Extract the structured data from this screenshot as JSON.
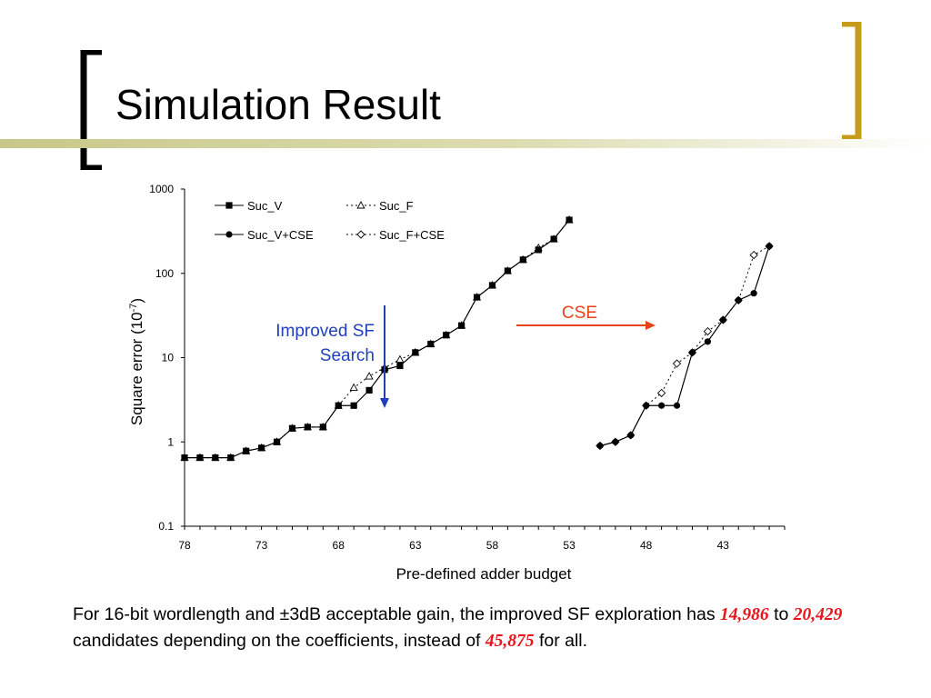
{
  "slide": {
    "title": "Simulation Result",
    "colors": {
      "bracket_left": "#000000",
      "bracket_right": "#c89a1b",
      "rule": "#c8c88a"
    }
  },
  "caption": {
    "part1": "For 16-bit wordlength and ±3dB acceptable gain, the improved SF exploration has",
    "num1": "14,986",
    "to": "to",
    "num2": "20,429",
    "part2": "candidates depending on the coefficients, instead of",
    "num3": "45,875",
    "part3": "for all."
  },
  "annotations": {
    "improved_line1": "Improved SF",
    "improved_line2": "Search",
    "cse": "CSE",
    "improved_color": "#1f3fbf",
    "cse_color": "#e8421b"
  },
  "chart_data": {
    "type": "line",
    "xlabel": "Pre-defined adder budget",
    "ylabel": "Square error (10",
    "ylabel_exp": "-7",
    "ylabel_close": ")",
    "yscale": "log",
    "ylim": [
      0.1,
      1000
    ],
    "yticks": [
      "0.1",
      "1",
      "10",
      "100",
      "1000"
    ],
    "xlim": [
      78,
      39
    ],
    "xticks": [
      "78",
      "73",
      "68",
      "63",
      "58",
      "53",
      "48",
      "43"
    ],
    "legend_placement": "top-left",
    "series": [
      {
        "name": "Suc_V",
        "marker": "square-filled",
        "dash": "solid",
        "x": [
          78,
          77,
          76,
          75,
          74,
          73,
          72,
          71,
          70,
          69,
          68,
          67,
          66,
          65,
          64,
          63,
          62,
          61,
          60,
          59,
          58,
          57,
          56,
          55,
          54,
          53
        ],
        "y": [
          0.65,
          0.65,
          0.65,
          0.65,
          0.78,
          0.85,
          1.0,
          1.45,
          1.5,
          1.5,
          2.7,
          2.7,
          4.1,
          7.2,
          8.0,
          11.5,
          14.5,
          18.5,
          24,
          52,
          72,
          107,
          145,
          190,
          255,
          430
        ]
      },
      {
        "name": "Suc_F",
        "marker": "triangle-open",
        "dash": "dotted",
        "x": [
          78,
          77,
          76,
          75,
          74,
          73,
          72,
          71,
          70,
          69,
          68,
          67,
          66,
          65,
          64,
          63,
          62,
          61,
          60,
          59,
          58,
          57,
          56,
          55,
          54,
          53
        ],
        "y": [
          0.65,
          0.65,
          0.65,
          0.65,
          0.78,
          0.85,
          1.0,
          1.45,
          1.5,
          1.5,
          2.7,
          4.4,
          6.0,
          7.6,
          9.5,
          11.5,
          14.5,
          18.5,
          24,
          52,
          72,
          107,
          145,
          200,
          255,
          430
        ]
      },
      {
        "name": "Suc_V+CSE",
        "marker": "circle-filled",
        "dash": "solid",
        "x": [
          51,
          50,
          49,
          48,
          47,
          46,
          45,
          44,
          43,
          42,
          41,
          40
        ],
        "y": [
          0.9,
          1.0,
          1.2,
          2.7,
          2.7,
          2.7,
          11.5,
          15.5,
          28,
          48,
          58,
          210
        ]
      },
      {
        "name": "Suc_F+CSE",
        "marker": "diamond-open",
        "dash": "dotted",
        "x": [
          51,
          50,
          49,
          48,
          47,
          46,
          45,
          44,
          43,
          42,
          41,
          40
        ],
        "y": [
          0.9,
          1.0,
          1.2,
          2.7,
          3.8,
          8.5,
          11.5,
          20.5,
          28,
          48,
          165,
          210
        ]
      }
    ]
  }
}
